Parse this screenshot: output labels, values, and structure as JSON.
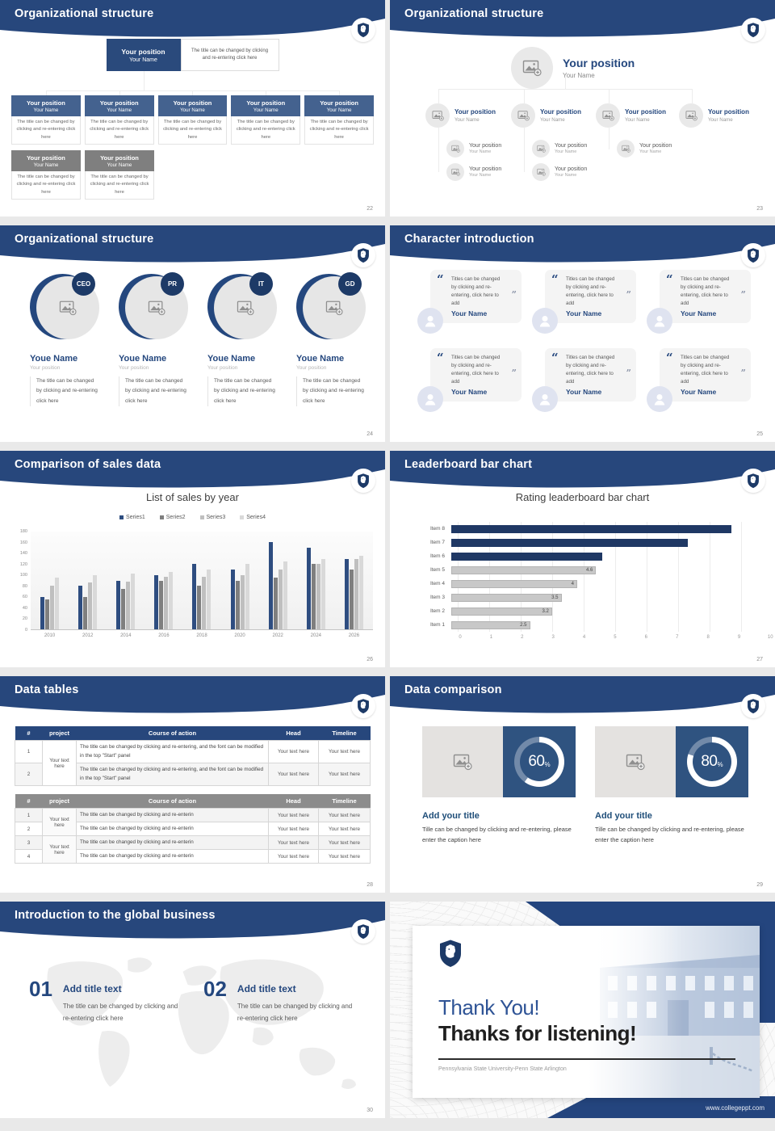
{
  "colors": {
    "header_navy": "#27477c",
    "box_blue": "#44628f",
    "box_gray": "#7f7f7f",
    "accent_navy": "#24477e",
    "donut_box_blue": "#2f5380",
    "bar_navy": "#1f3864",
    "bar_gray": "#c8c8c8"
  },
  "slides": {
    "s22": {
      "title": "Organizational structure",
      "page": "22",
      "root": {
        "position": "Your position",
        "name": "Your Name"
      },
      "root_caption": "The title can be changed by clicking and re-entering click here",
      "children": [
        {
          "position": "Your position",
          "name": "Your Name",
          "caption": "The title can be changed by clicking and re-entering click here",
          "variant": "blue"
        },
        {
          "position": "Your position",
          "name": "Your Name",
          "caption": "The title can be changed by clicking and re-entering click here",
          "variant": "blue"
        },
        {
          "position": "Your position",
          "name": "Your Name",
          "caption": "The title can be changed by clicking and re-entering click here",
          "variant": "blue"
        },
        {
          "position": "Your position",
          "name": "Your Name",
          "caption": "The title can be changed by clicking and re-entering click here",
          "variant": "blue"
        },
        {
          "position": "Your position",
          "name": "Your Name",
          "caption": "The title can be changed by clicking and re-entering click here",
          "variant": "blue"
        }
      ],
      "children_row2": [
        {
          "position": "Your position",
          "name": "Your Name",
          "caption": "The title can be changed by clicking and re-entering click here",
          "variant": "gray"
        },
        {
          "position": "Your position",
          "name": "Your Name",
          "caption": "The title can be changed by clicking and re-entering click here",
          "variant": "gray"
        }
      ]
    },
    "s23": {
      "title": "Organizational structure",
      "page": "23",
      "root": {
        "position": "Your position",
        "name": "Your Name"
      },
      "branches": [
        {
          "position": "Your position",
          "name": "Your Name"
        },
        {
          "position": "Your position",
          "name": "Your Name"
        },
        {
          "position": "Your position",
          "name": "Your Name"
        },
        {
          "position": "Your position",
          "name": "Your Name"
        }
      ],
      "subs_row1": [
        {
          "position": "Your position",
          "name": "Your Name"
        },
        {
          "position": "Your position",
          "name": "Your Name"
        },
        {
          "position": "Your position",
          "name": "Your Name"
        }
      ],
      "subs_row2": [
        {
          "position": "Your position",
          "name": "Your Name"
        },
        {
          "position": "Your position",
          "name": "Your Name"
        }
      ]
    },
    "s24": {
      "title": "Organizational structure",
      "page": "24",
      "members": [
        {
          "badge": "CEO",
          "name": "Youe Name",
          "position": "Your position",
          "caption": "The title can be changed by clicking and re-entering click here"
        },
        {
          "badge": "PR",
          "name": "Youe Name",
          "position": "Your position",
          "caption": "The title can be changed by clicking and re-entering click here"
        },
        {
          "badge": "IT",
          "name": "Youe Name",
          "position": "Your position",
          "caption": "The title can be changed by clicking and re-entering click here"
        },
        {
          "badge": "GD",
          "name": "Youe Name",
          "position": "Your position",
          "caption": "The title can be changed by clicking and re-entering click here"
        }
      ]
    },
    "s25": {
      "title": "Character introduction",
      "page": "25",
      "open_quote": "“",
      "close_quote": "”",
      "cards": [
        {
          "quote": "Titles can be changed by clicking and re-entering, click here to add",
          "name": "Your Name"
        },
        {
          "quote": "Titles can be changed by clicking and re-entering, click here to add",
          "name": "Your Name"
        },
        {
          "quote": "Titles can be changed by clicking and re-entering, click here to add",
          "name": "Your Name"
        },
        {
          "quote": "Titles can be changed by clicking and re-entering, click here to add",
          "name": "Your Name"
        },
        {
          "quote": "Titles can be changed by clicking and re-entering, click here to add",
          "name": "Your Name"
        },
        {
          "quote": "Titles can be changed by clicking and re-entering, click here to add",
          "name": "Your Name"
        }
      ]
    },
    "s26": {
      "title": "Comparison of sales data",
      "page": "26"
    },
    "s27": {
      "title": "Leaderboard bar chart",
      "page": "27"
    },
    "s28": {
      "title": "Data tables",
      "page": "28",
      "headers": [
        "#",
        "project",
        "Course of action",
        "Head",
        "Timeline"
      ],
      "cell": "Your text here",
      "course_long": "The title can be changed by clicking and re-entering, and the font can be modified in the top \"Start\" panel",
      "course_short": "The title can be changed by clicking and re-enterin",
      "t1_rows": [
        "1",
        "2"
      ],
      "t2_rows": [
        "1",
        "2",
        "3",
        "4"
      ]
    },
    "s29": {
      "title": "Data comparison",
      "page": "29",
      "panels": [
        {
          "percent": "60",
          "unit": "%",
          "title": "Add your title",
          "caption": "Tille can be changed by clicking and re-entering, please enter the caption here"
        },
        {
          "percent": "80",
          "unit": "%",
          "title": "Add your title",
          "caption": "Tille can be changed by clicking and re-entering, please enter the caption here"
        }
      ]
    },
    "s30": {
      "title": "Introduction to the global business",
      "page": "30",
      "items": [
        {
          "number": "01",
          "title": "Add title text",
          "caption": "The title can be changed by clicking and re-entering click here"
        },
        {
          "number": "02",
          "title": "Add title text",
          "caption": "The title can be changed by clicking and re-entering click here"
        }
      ]
    },
    "s31": {
      "thank_you": "Thank You!",
      "subtitle": "Thanks for listening!",
      "university": "Pennsylvania State University-Penn State Arlington",
      "website": "www.collegeppt.com"
    }
  },
  "chart_data": [
    {
      "type": "bar",
      "title": "List of sales by year",
      "categories": [
        "2010",
        "2012",
        "2014",
        "2016",
        "2018",
        "2020",
        "2022",
        "2024",
        "2026"
      ],
      "series": [
        {
          "name": "Series1",
          "color": "#2e4d80",
          "values": [
            60,
            80,
            90,
            100,
            120,
            110,
            160,
            150,
            130
          ]
        },
        {
          "name": "Series2",
          "color": "#7f7f7f",
          "values": [
            55,
            60,
            75,
            90,
            80,
            90,
            95,
            120,
            110
          ]
        },
        {
          "name": "Series3",
          "color": "#bfbfbf",
          "values": [
            80,
            86,
            88,
            96,
            97,
            100,
            110,
            120,
            130
          ]
        },
        {
          "name": "Series4",
          "color": "#d9d9d9",
          "values": [
            95,
            99,
            102,
            105,
            110,
            120,
            125,
            130,
            135
          ]
        }
      ],
      "xlabel": "",
      "ylabel": "",
      "ylim": [
        0,
        180
      ],
      "ytick": 20,
      "grid": true,
      "legend_position": "top"
    },
    {
      "type": "horizontal_bar",
      "title": "Rating leaderboard bar chart",
      "categories": [
        "Item 8",
        "Item 7",
        "Item 6",
        "Item 5",
        "Item 4",
        "Item 3",
        "Item 2",
        "Item 1"
      ],
      "values": [
        8.9,
        7.5,
        4.8,
        4.6,
        4,
        3.5,
        3.2,
        2.5
      ],
      "colors": [
        "#1f3864",
        "#1f3864",
        "#1f3864",
        "#c8c8c8",
        "#c8c8c8",
        "#c8c8c8",
        "#c8c8c8",
        "#c8c8c8"
      ],
      "data_labels": [
        null,
        null,
        null,
        "4.6",
        "4",
        "3.5",
        "3.2",
        "2.5"
      ],
      "xlim": [
        0,
        10
      ],
      "xtick": 1,
      "grid": true
    }
  ]
}
